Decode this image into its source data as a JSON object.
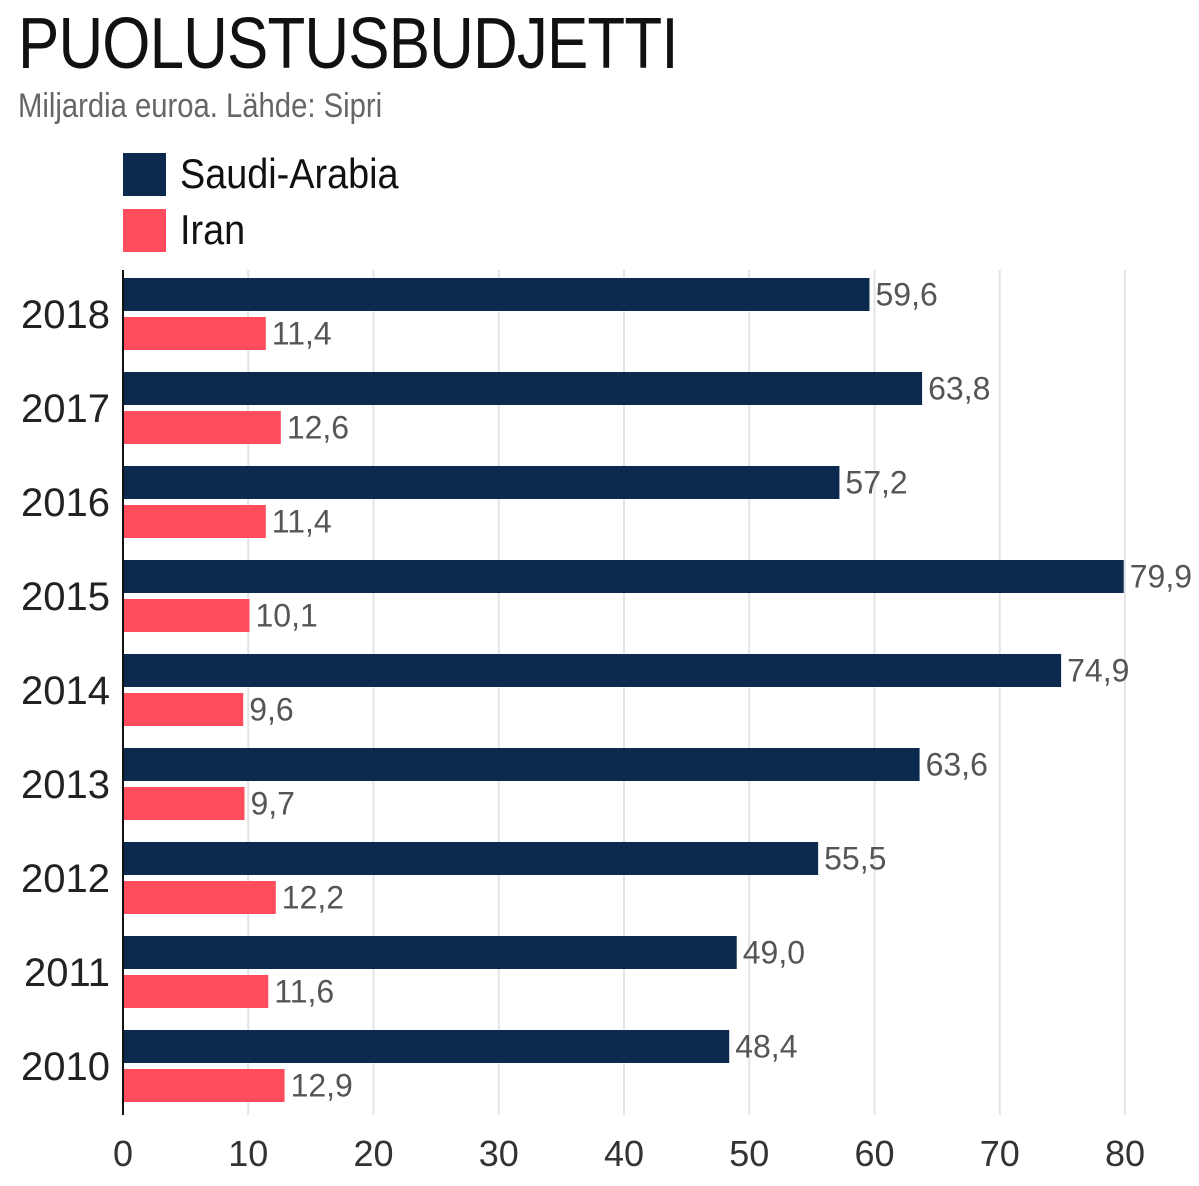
{
  "chart_data": {
    "type": "bar",
    "orientation": "horizontal",
    "title": "PUOLUSTUSBUDJETTI",
    "subtitle": "Miljardia euroa. Lähde: Sipri",
    "categories": [
      "2018",
      "2017",
      "2016",
      "2015",
      "2014",
      "2013",
      "2012",
      "2011",
      "2010"
    ],
    "series": [
      {
        "name": "Saudi-Arabia",
        "color": "#0c2a4e",
        "values": [
          59.6,
          63.8,
          57.2,
          79.9,
          74.9,
          63.6,
          55.5,
          49.0,
          48.4
        ],
        "labels": [
          "59,6",
          "63,8",
          "57,2",
          "79,9",
          "74,9",
          "63,6",
          "55,5",
          "49,0",
          "48,4"
        ]
      },
      {
        "name": "Iran",
        "color": "#ff4d5e",
        "values": [
          11.4,
          12.6,
          11.4,
          10.1,
          9.6,
          9.7,
          12.2,
          11.6,
          12.9
        ],
        "labels": [
          "11,4",
          "12,6",
          "11,4",
          "10,1",
          "9,6",
          "9,7",
          "12,2",
          "11,6",
          "12,9"
        ]
      }
    ],
    "xlim": [
      0,
      80
    ],
    "xticks": [
      "0",
      "10",
      "20",
      "30",
      "40",
      "50",
      "60",
      "70",
      "80"
    ],
    "grid": true,
    "legend_position": "top-left"
  }
}
